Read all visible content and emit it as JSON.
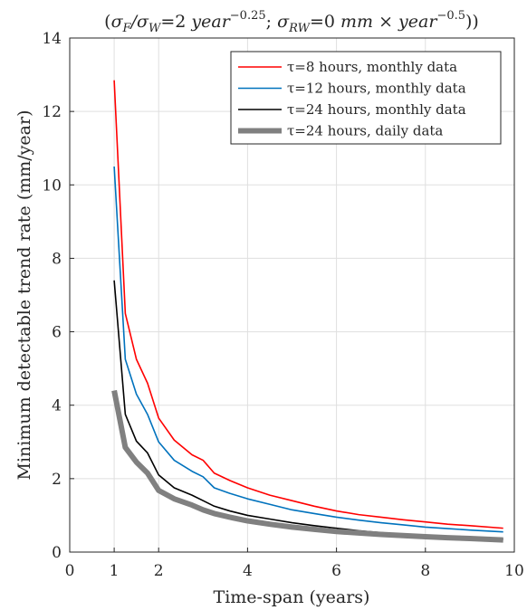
{
  "chart_data": {
    "type": "line",
    "title": "(σF/σW=2 year^-0.25; σRW=0 mm × year^-0.5))",
    "xlabel": "Time-span (years)",
    "ylabel": "Minimum detectable trend rate (mm/year)",
    "xlim": [
      0,
      10
    ],
    "ylim": [
      0,
      14
    ],
    "xticks": [
      0,
      1,
      2,
      4,
      6,
      8,
      10
    ],
    "yticks": [
      0,
      2,
      4,
      6,
      8,
      10,
      12,
      14
    ],
    "grid": true,
    "legend_position": "top-right",
    "series": [
      {
        "name": "τ=8 hours, monthly data",
        "color": "#ff0000",
        "line_width": "thin",
        "x": [
          1.0,
          1.25,
          1.5,
          1.75,
          2.0,
          2.35,
          2.75,
          3.0,
          3.25,
          3.6,
          4.0,
          4.5,
          5.0,
          5.5,
          6.0,
          6.5,
          7.0,
          7.5,
          8.0,
          8.5,
          9.0,
          9.75
        ],
        "y": [
          12.85,
          6.5,
          5.25,
          4.6,
          3.65,
          3.05,
          2.65,
          2.5,
          2.15,
          1.95,
          1.75,
          1.55,
          1.4,
          1.25,
          1.12,
          1.02,
          0.95,
          0.88,
          0.82,
          0.76,
          0.72,
          0.65
        ]
      },
      {
        "name": "τ=12 hours, monthly data",
        "color": "#0072bd",
        "line_width": "thin",
        "x": [
          1.0,
          1.25,
          1.5,
          1.75,
          2.0,
          2.35,
          2.75,
          3.0,
          3.25,
          3.6,
          4.0,
          4.5,
          5.0,
          5.5,
          6.0,
          6.5,
          7.0,
          7.5,
          8.0,
          8.5,
          9.0,
          9.75
        ],
        "y": [
          10.5,
          5.25,
          4.3,
          3.75,
          3.0,
          2.5,
          2.2,
          2.05,
          1.75,
          1.6,
          1.45,
          1.3,
          1.15,
          1.05,
          0.95,
          0.87,
          0.8,
          0.74,
          0.68,
          0.64,
          0.6,
          0.55
        ]
      },
      {
        "name": "τ=24 hours, monthly data",
        "color": "#000000",
        "line_width": "thin",
        "x": [
          1.0,
          1.25,
          1.5,
          1.75,
          2.0,
          2.35,
          2.75,
          3.0,
          3.25,
          3.6,
          4.0,
          4.5,
          5.0,
          5.5,
          6.0,
          6.5,
          7.0,
          7.5,
          8.0,
          8.5,
          9.0,
          9.75
        ],
        "y": [
          7.4,
          3.75,
          3.02,
          2.7,
          2.1,
          1.75,
          1.55,
          1.4,
          1.25,
          1.12,
          1.0,
          0.9,
          0.8,
          0.72,
          0.65,
          0.58,
          0.53,
          0.49,
          0.45,
          0.42,
          0.39,
          0.35
        ]
      },
      {
        "name": "τ=24 hours, daily data",
        "color": "#808080",
        "line_width": "thick",
        "x": [
          1.0,
          1.25,
          1.5,
          1.75,
          2.0,
          2.35,
          2.75,
          3.0,
          3.25,
          3.6,
          4.0,
          4.5,
          5.0,
          5.5,
          6.0,
          6.5,
          7.0,
          7.5,
          8.0,
          8.5,
          9.0,
          9.75
        ],
        "y": [
          4.4,
          2.85,
          2.45,
          2.15,
          1.68,
          1.45,
          1.28,
          1.15,
          1.05,
          0.95,
          0.85,
          0.76,
          0.68,
          0.62,
          0.56,
          0.52,
          0.48,
          0.45,
          0.42,
          0.39,
          0.37,
          0.33
        ]
      }
    ]
  }
}
